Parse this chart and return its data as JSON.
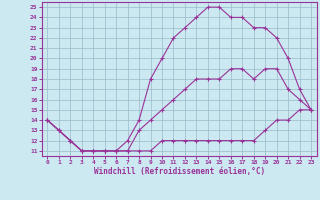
{
  "xlabel": "Windchill (Refroidissement éolien,°C)",
  "bg_color": "#cce8f0",
  "line_color": "#993399",
  "grid_color": "#99bbcc",
  "xlim": [
    -0.5,
    23.5
  ],
  "ylim": [
    10.5,
    25.5
  ],
  "xticks": [
    0,
    1,
    2,
    3,
    4,
    5,
    6,
    7,
    8,
    9,
    10,
    11,
    12,
    13,
    14,
    15,
    16,
    17,
    18,
    19,
    20,
    21,
    22,
    23
  ],
  "yticks": [
    11,
    12,
    13,
    14,
    15,
    16,
    17,
    18,
    19,
    20,
    21,
    22,
    23,
    24,
    25
  ],
  "series": [
    {
      "x": [
        0,
        1,
        2,
        3,
        4,
        5,
        6,
        7,
        8,
        9,
        10,
        11,
        12,
        13,
        14,
        15,
        16,
        17,
        18,
        19,
        20,
        21,
        22,
        23
      ],
      "y": [
        14,
        13,
        12,
        11,
        11,
        11,
        11,
        11,
        11,
        11,
        12,
        12,
        12,
        12,
        12,
        12,
        12,
        12,
        12,
        13,
        14,
        14,
        15,
        15
      ]
    },
    {
      "x": [
        0,
        1,
        2,
        3,
        4,
        5,
        6,
        7,
        8,
        9,
        10,
        11,
        12,
        13,
        14,
        15,
        16,
        17,
        18,
        19,
        20,
        21,
        22,
        23
      ],
      "y": [
        14,
        13,
        12,
        11,
        11,
        11,
        11,
        11,
        13,
        14,
        15,
        16,
        17,
        18,
        18,
        18,
        19,
        19,
        18,
        19,
        19,
        17,
        16,
        15
      ]
    },
    {
      "x": [
        0,
        1,
        2,
        3,
        4,
        5,
        6,
        7,
        8,
        9,
        10,
        11,
        12,
        13,
        14,
        15,
        16,
        17,
        18,
        19,
        20,
        21,
        22,
        23
      ],
      "y": [
        14,
        13,
        12,
        11,
        11,
        11,
        11,
        12,
        14,
        18,
        20,
        22,
        23,
        24,
        25,
        25,
        24,
        24,
        23,
        23,
        22,
        20,
        17,
        15
      ]
    }
  ]
}
